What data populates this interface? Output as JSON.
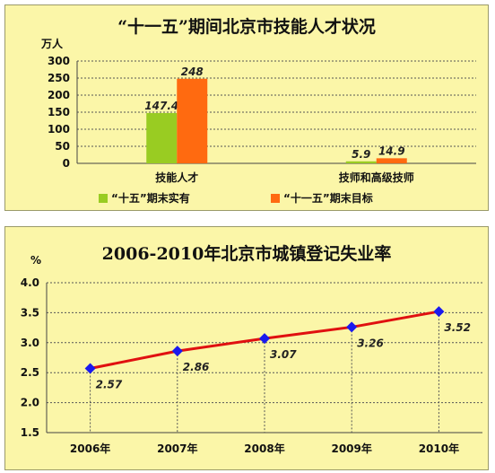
{
  "chart_data": [
    {
      "type": "bar",
      "title": "“十一五”期间北京市技能人才状况",
      "ylabel": "万人",
      "ylim": [
        0,
        300
      ],
      "yticks": [
        0,
        50,
        100,
        150,
        200,
        250,
        300
      ],
      "categories": [
        "技能人才",
        "技师和高级技师"
      ],
      "series": [
        {
          "name": "“十五”期末实有",
          "values": [
            147.4,
            5.9
          ],
          "color": "#99cc22"
        },
        {
          "name": "“十一五”期末目标",
          "values": [
            248,
            14.9
          ],
          "color": "#ff6a10"
        }
      ],
      "data_labels": [
        [
          "147.4",
          "5.9"
        ],
        [
          "248",
          "14.9"
        ]
      ],
      "legend": "bottom",
      "grid": true
    },
    {
      "type": "line",
      "title": "2006-2010年北京市城镇登记失业率",
      "ylabel": "%",
      "ylim": [
        1.5,
        4.0
      ],
      "yticks": [
        "1.5",
        "2.0",
        "2.5",
        "3.0",
        "3.5",
        "4.0"
      ],
      "categories": [
        "2006年",
        "2007年",
        "2008年",
        "2009年",
        "2010年"
      ],
      "values": [
        2.57,
        2.86,
        3.07,
        3.26,
        3.52
      ],
      "data_labels": [
        "2.57",
        "2.86",
        "3.07",
        "3.26",
        "3.52"
      ],
      "line_color": "#e01010",
      "marker_color": "#1a1aee",
      "grid": true
    }
  ]
}
